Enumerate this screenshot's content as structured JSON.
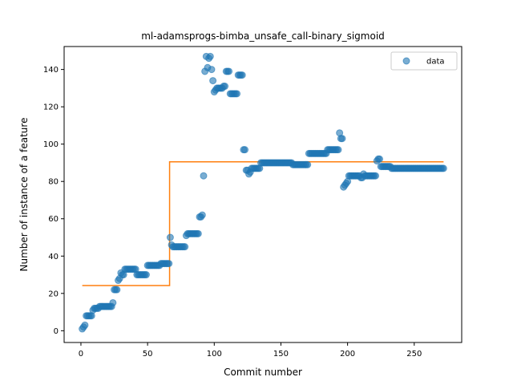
{
  "chart_data": {
    "type": "scatter",
    "title": "ml-adamsprogs-bimba_unsafe_call-binary_sigmoid",
    "xlabel": "Commit number",
    "ylabel": "Number of instance of a feature",
    "xlim": [
      -12.6,
      285.6
    ],
    "ylim": [
      -6.3,
      152.3
    ],
    "xticks": [
      0,
      50,
      100,
      150,
      200,
      250
    ],
    "yticks": [
      0,
      20,
      40,
      60,
      80,
      100,
      120,
      140
    ],
    "legend": {
      "placement": "top-right",
      "entries": [
        "data"
      ]
    },
    "colors": {
      "data": "#1f77b4",
      "fit": "#ff7f0e"
    },
    "series": [
      {
        "name": "data",
        "kind": "scatter",
        "points": [
          [
            1,
            1
          ],
          [
            2,
            2
          ],
          [
            3,
            3
          ],
          [
            4,
            8
          ],
          [
            5,
            8
          ],
          [
            6,
            8
          ],
          [
            7,
            8
          ],
          [
            8,
            8
          ],
          [
            9,
            11
          ],
          [
            10,
            12
          ],
          [
            11,
            12
          ],
          [
            12,
            12
          ],
          [
            13,
            12
          ],
          [
            14,
            13
          ],
          [
            15,
            13
          ],
          [
            16,
            13
          ],
          [
            17,
            13
          ],
          [
            18,
            13
          ],
          [
            19,
            13
          ],
          [
            20,
            13
          ],
          [
            21,
            13
          ],
          [
            22,
            13
          ],
          [
            23,
            13
          ],
          [
            24,
            15
          ],
          [
            25,
            22
          ],
          [
            26,
            22
          ],
          [
            27,
            22
          ],
          [
            28,
            27
          ],
          [
            29,
            28
          ],
          [
            30,
            31
          ],
          [
            31,
            30
          ],
          [
            32,
            30
          ],
          [
            33,
            33
          ],
          [
            34,
            33
          ],
          [
            35,
            33
          ],
          [
            36,
            33
          ],
          [
            37,
            33
          ],
          [
            38,
            33
          ],
          [
            39,
            33
          ],
          [
            40,
            33
          ],
          [
            41,
            33
          ],
          [
            42,
            30
          ],
          [
            43,
            30
          ],
          [
            44,
            30
          ],
          [
            45,
            30
          ],
          [
            46,
            30
          ],
          [
            47,
            30
          ],
          [
            48,
            30
          ],
          [
            49,
            30
          ],
          [
            50,
            35
          ],
          [
            51,
            35
          ],
          [
            52,
            35
          ],
          [
            53,
            35
          ],
          [
            54,
            35
          ],
          [
            55,
            35
          ],
          [
            56,
            35
          ],
          [
            57,
            35
          ],
          [
            58,
            35
          ],
          [
            59,
            35
          ],
          [
            60,
            36
          ],
          [
            61,
            36
          ],
          [
            62,
            36
          ],
          [
            63,
            36
          ],
          [
            64,
            36
          ],
          [
            65,
            36
          ],
          [
            66,
            36
          ],
          [
            67,
            50
          ],
          [
            68,
            46
          ],
          [
            69,
            45
          ],
          [
            70,
            45
          ],
          [
            71,
            45
          ],
          [
            72,
            45
          ],
          [
            73,
            45
          ],
          [
            74,
            45
          ],
          [
            75,
            45
          ],
          [
            76,
            45
          ],
          [
            77,
            45
          ],
          [
            78,
            45
          ],
          [
            79,
            51
          ],
          [
            80,
            52
          ],
          [
            81,
            52
          ],
          [
            82,
            52
          ],
          [
            83,
            52
          ],
          [
            84,
            52
          ],
          [
            85,
            52
          ],
          [
            86,
            52
          ],
          [
            87,
            52
          ],
          [
            88,
            52
          ],
          [
            89,
            61
          ],
          [
            90,
            61
          ],
          [
            91,
            62
          ],
          [
            92,
            83
          ],
          [
            93,
            139
          ],
          [
            94,
            147
          ],
          [
            95,
            141
          ],
          [
            96,
            146
          ],
          [
            97,
            147
          ],
          [
            98,
            140
          ],
          [
            99,
            134
          ],
          [
            100,
            128
          ],
          [
            101,
            129
          ],
          [
            102,
            130
          ],
          [
            103,
            130
          ],
          [
            104,
            130
          ],
          [
            105,
            130
          ],
          [
            106,
            130
          ],
          [
            107,
            131
          ],
          [
            108,
            131
          ],
          [
            109,
            139
          ],
          [
            110,
            139
          ],
          [
            111,
            139
          ],
          [
            112,
            127
          ],
          [
            113,
            127
          ],
          [
            114,
            127
          ],
          [
            115,
            127
          ],
          [
            116,
            127
          ],
          [
            117,
            127
          ],
          [
            118,
            137
          ],
          [
            119,
            137
          ],
          [
            120,
            137
          ],
          [
            121,
            137
          ],
          [
            122,
            97
          ],
          [
            123,
            97
          ],
          [
            124,
            86
          ],
          [
            125,
            86
          ],
          [
            126,
            84
          ],
          [
            127,
            85
          ],
          [
            128,
            87
          ],
          [
            129,
            87
          ],
          [
            130,
            87
          ],
          [
            131,
            87
          ],
          [
            132,
            87
          ],
          [
            133,
            87
          ],
          [
            134,
            87
          ],
          [
            135,
            90
          ],
          [
            136,
            90
          ],
          [
            137,
            90
          ],
          [
            138,
            90
          ],
          [
            139,
            90
          ],
          [
            140,
            90
          ],
          [
            141,
            90
          ],
          [
            142,
            90
          ],
          [
            143,
            90
          ],
          [
            144,
            90
          ],
          [
            145,
            90
          ],
          [
            146,
            90
          ],
          [
            147,
            90
          ],
          [
            148,
            90
          ],
          [
            149,
            90
          ],
          [
            150,
            90
          ],
          [
            151,
            90
          ],
          [
            152,
            90
          ],
          [
            153,
            90
          ],
          [
            154,
            90
          ],
          [
            155,
            90
          ],
          [
            156,
            90
          ],
          [
            157,
            90
          ],
          [
            158,
            90
          ],
          [
            159,
            89
          ],
          [
            160,
            89
          ],
          [
            161,
            89
          ],
          [
            162,
            89
          ],
          [
            163,
            89
          ],
          [
            164,
            89
          ],
          [
            165,
            89
          ],
          [
            166,
            89
          ],
          [
            167,
            89
          ],
          [
            168,
            89
          ],
          [
            169,
            89
          ],
          [
            170,
            89
          ],
          [
            171,
            95
          ],
          [
            172,
            95
          ],
          [
            173,
            95
          ],
          [
            174,
            95
          ],
          [
            175,
            95
          ],
          [
            176,
            95
          ],
          [
            177,
            95
          ],
          [
            178,
            95
          ],
          [
            179,
            95
          ],
          [
            180,
            95
          ],
          [
            181,
            95
          ],
          [
            182,
            95
          ],
          [
            183,
            95
          ],
          [
            184,
            95
          ],
          [
            185,
            97
          ],
          [
            186,
            97
          ],
          [
            187,
            97
          ],
          [
            188,
            97
          ],
          [
            189,
            97
          ],
          [
            190,
            97
          ],
          [
            191,
            97
          ],
          [
            192,
            97
          ],
          [
            193,
            97
          ],
          [
            194,
            106
          ],
          [
            195,
            103
          ],
          [
            196,
            103
          ],
          [
            197,
            77
          ],
          [
            198,
            78
          ],
          [
            199,
            79
          ],
          [
            200,
            80
          ],
          [
            201,
            83
          ],
          [
            202,
            83
          ],
          [
            203,
            83
          ],
          [
            204,
            83
          ],
          [
            205,
            83
          ],
          [
            206,
            83
          ],
          [
            207,
            83
          ],
          [
            208,
            83
          ],
          [
            209,
            83
          ],
          [
            210,
            82
          ],
          [
            211,
            82
          ],
          [
            212,
            84
          ],
          [
            213,
            83
          ],
          [
            214,
            83
          ],
          [
            215,
            83
          ],
          [
            216,
            83
          ],
          [
            217,
            83
          ],
          [
            218,
            83
          ],
          [
            219,
            83
          ],
          [
            220,
            83
          ],
          [
            221,
            83
          ],
          [
            222,
            91
          ],
          [
            223,
            92
          ],
          [
            224,
            92
          ],
          [
            225,
            88
          ],
          [
            226,
            88
          ],
          [
            227,
            88
          ],
          [
            228,
            88
          ],
          [
            229,
            88
          ],
          [
            230,
            88
          ],
          [
            231,
            88
          ],
          [
            232,
            88
          ],
          [
            233,
            87
          ],
          [
            234,
            87
          ],
          [
            235,
            87
          ],
          [
            236,
            87
          ],
          [
            237,
            87
          ],
          [
            238,
            87
          ],
          [
            239,
            87
          ],
          [
            240,
            87
          ],
          [
            241,
            87
          ],
          [
            242,
            87
          ],
          [
            243,
            87
          ],
          [
            244,
            87
          ],
          [
            245,
            87
          ],
          [
            246,
            87
          ],
          [
            247,
            87
          ],
          [
            248,
            87
          ],
          [
            249,
            87
          ],
          [
            250,
            87
          ],
          [
            251,
            87
          ],
          [
            252,
            87
          ],
          [
            253,
            87
          ],
          [
            254,
            87
          ],
          [
            255,
            87
          ],
          [
            256,
            87
          ],
          [
            257,
            87
          ],
          [
            258,
            87
          ],
          [
            259,
            87
          ],
          [
            260,
            87
          ],
          [
            261,
            87
          ],
          [
            262,
            87
          ],
          [
            263,
            87
          ],
          [
            264,
            87
          ],
          [
            265,
            87
          ],
          [
            266,
            87
          ],
          [
            267,
            87
          ],
          [
            268,
            87
          ],
          [
            269,
            87
          ],
          [
            270,
            87
          ],
          [
            271,
            87
          ],
          [
            272,
            87
          ]
        ]
      },
      {
        "kind": "line",
        "points": [
          [
            1,
            24.2
          ],
          [
            66.5,
            24.2
          ],
          [
            66.5,
            90.5
          ],
          [
            272,
            90.5
          ]
        ]
      }
    ]
  }
}
